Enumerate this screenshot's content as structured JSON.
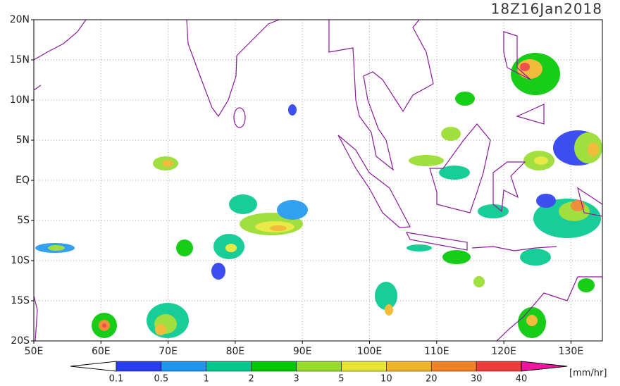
{
  "title": "18Z16Jan2018",
  "lat_labels": [
    "20N",
    "15N",
    "10N",
    "5N",
    "EQ",
    "5S",
    "10S",
    "15S",
    "20S"
  ],
  "lon_labels": [
    "50E",
    "60E",
    "70E",
    "80E",
    "90E",
    "100E",
    "110E",
    "120E",
    "130E"
  ],
  "colorbar": {
    "labels": [
      "0.1",
      "0.5",
      "1",
      "2",
      "3",
      "5",
      "10",
      "20",
      "30",
      "40"
    ],
    "colors": [
      "#2a3cf0",
      "#1e96f0",
      "#00c88c",
      "#00c800",
      "#96dc2a",
      "#e6e632",
      "#f0b428",
      "#f08228",
      "#f03c3c"
    ],
    "low_color": "#ffffff",
    "high_color": "#f014a0",
    "unit": "[mm/hr]"
  }
}
